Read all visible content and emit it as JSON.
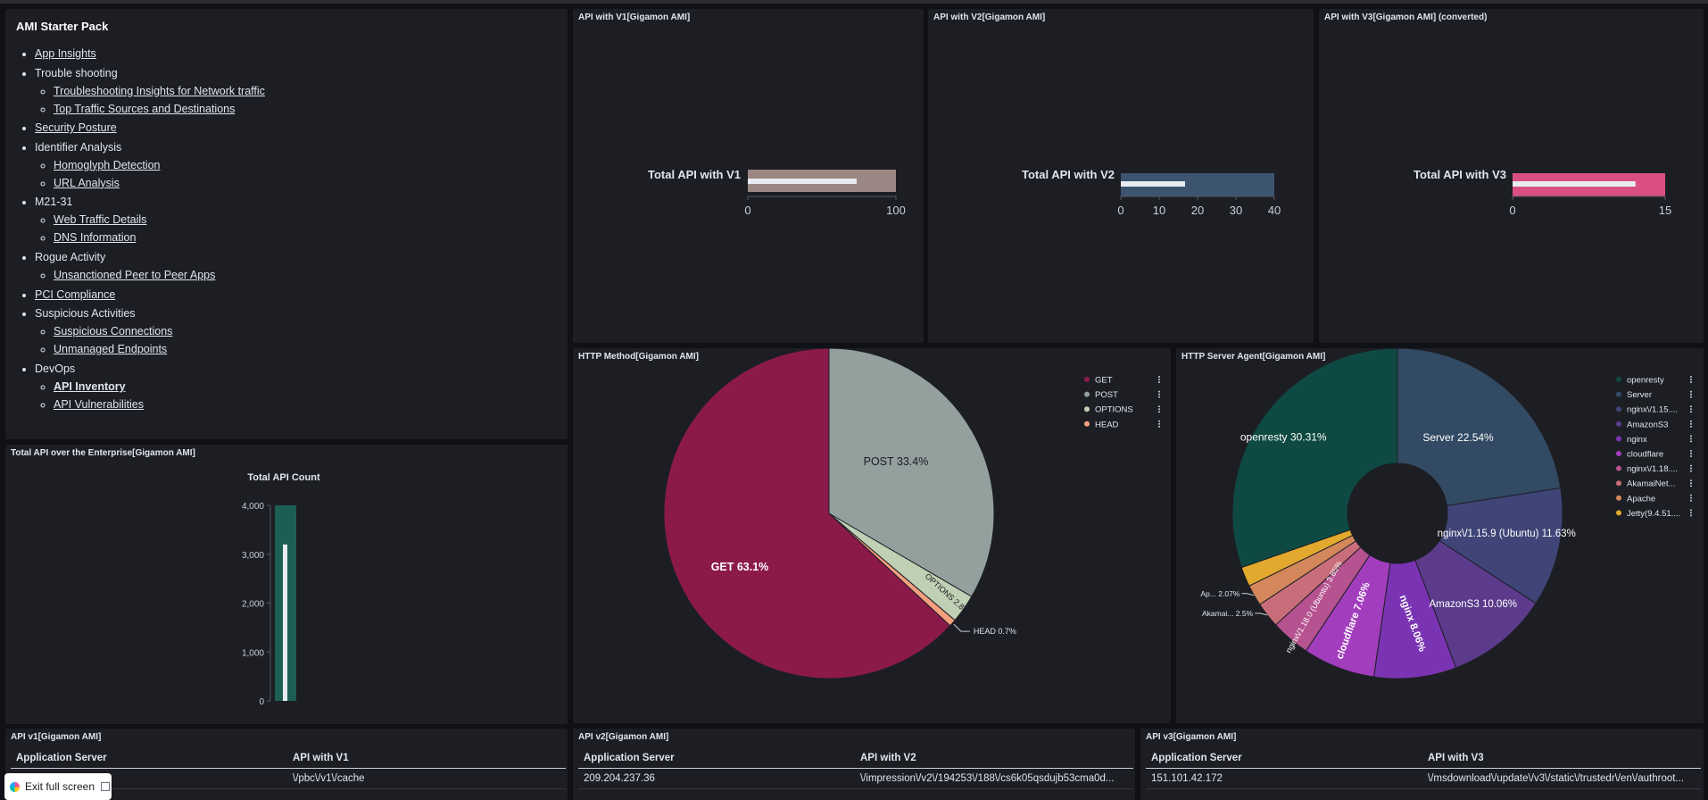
{
  "nav": {
    "title": "AMI Starter Pack",
    "items": [
      {
        "label": "App Insights",
        "link": true
      },
      {
        "label": "Trouble shooting",
        "link": false,
        "children": [
          {
            "label": "Troubleshooting Insights for Network traffic"
          },
          {
            "label": "Top Traffic Sources and Destinations"
          }
        ]
      },
      {
        "label": "Security Posture",
        "link": true
      },
      {
        "label": "Identifier Analysis",
        "link": false,
        "children": [
          {
            "label": "Homoglyph Detection"
          },
          {
            "label": "URL Analysis"
          }
        ]
      },
      {
        "label": "M21-31",
        "link": false,
        "children": [
          {
            "label": "Web Traffic Details"
          },
          {
            "label": "DNS Information"
          }
        ]
      },
      {
        "label": "Rogue Activity",
        "link": false,
        "children": [
          {
            "label": "Unsanctioned Peer to Peer Apps"
          }
        ]
      },
      {
        "label": "PCI Compliance",
        "link": true
      },
      {
        "label": "Suspicious Activities",
        "link": false,
        "children": [
          {
            "label": "Suspicious Connections"
          },
          {
            "label": "Unmanaged Endpoints"
          }
        ]
      },
      {
        "label": "DevOps",
        "link": false,
        "children": [
          {
            "label": "API Inventory",
            "active": true
          },
          {
            "label": "API Vulnerabilities"
          }
        ]
      }
    ]
  },
  "gauges": [
    {
      "title": "API with V1[Gigamon AMI]",
      "label": "Total API with V1",
      "value": 79,
      "max": 100,
      "ticks": [
        0,
        100
      ],
      "color": "#9a8682"
    },
    {
      "title": "API with V2[Gigamon AMI]",
      "label": "Total API with V2",
      "value": 18,
      "max": 40,
      "ticks": [
        0,
        10,
        20,
        30,
        40
      ],
      "color": "#3d5471"
    },
    {
      "title": "API with V3[Gigamon AMI] (converted)",
      "label": "Total API with V3",
      "value": 13,
      "max": 15,
      "ticks": [
        0,
        15
      ],
      "color": "#d94f82"
    }
  ],
  "total": {
    "title": "Total API over the Enterprise[Gigamon AMI]",
    "chart_title": "Total API Count",
    "value": 3200,
    "max": 4000,
    "ticks": [
      "0",
      "1,000",
      "2,000",
      "3,000",
      "4,000"
    ],
    "bar_color": "#1d5e54"
  },
  "http_method": {
    "title": "HTTP Method[Gigamon AMI]",
    "legend": [
      {
        "label": "GET",
        "color": "#8b1a4b"
      },
      {
        "label": "POST",
        "color": "#93a09d"
      },
      {
        "label": "OPTIONS",
        "color": "#c0d0b4"
      },
      {
        "label": "HEAD",
        "color": "#f4a07f"
      }
    ]
  },
  "server_agent": {
    "title": "HTTP Server Agent[Gigamon AMI]",
    "legend": [
      {
        "label": "openresty",
        "color": "#0e4a43"
      },
      {
        "label": "Server",
        "color": "#324a63"
      },
      {
        "label": "nginx\\/1.15....",
        "color": "#3f4577"
      },
      {
        "label": "AmazonS3",
        "color": "#5c3b8c"
      },
      {
        "label": "nginx",
        "color": "#7a34b3"
      },
      {
        "label": "cloudflare",
        "color": "#a23dbd"
      },
      {
        "label": "nginx\\/1.18....",
        "color": "#b5528f"
      },
      {
        "label": "AkamaiNet...",
        "color": "#c86e7a"
      },
      {
        "label": "Apache",
        "color": "#d3875a"
      },
      {
        "label": "Jetty(9.4.51....",
        "color": "#e2a92e"
      }
    ]
  },
  "chart_data": [
    {
      "type": "bar",
      "title": "Total API Count",
      "categories": [
        ""
      ],
      "values": [
        3200
      ],
      "ylim": [
        0,
        4000
      ],
      "yticks": [
        "0",
        "1,000",
        "2,000",
        "3,000",
        "4,000"
      ]
    },
    {
      "type": "pie",
      "title": "",
      "labels": [
        "GET",
        "POST",
        "OPTIONS",
        "HEAD"
      ],
      "values": [
        63.1,
        33.4,
        2.8,
        0.7
      ],
      "slice_labels": [
        "GET 63.1%",
        "POST 33.4%",
        "OPTIONS 2.8%",
        "HEAD 0.7%"
      ],
      "colors": [
        "#8b1a4b",
        "#93a09d",
        "#c0d0b4",
        "#f4a07f"
      ],
      "legend": "top-right"
    },
    {
      "type": "pie",
      "title": "",
      "donut": true,
      "labels": [
        "openresty",
        "Server",
        "nginx\\/1.15.9 (Ubuntu)",
        "AmazonS3",
        "nginx",
        "cloudflare",
        "nginx\\/1.18.0 (Ubuntu)",
        "AkamaiNet...",
        "Apache",
        "Jetty(9.4.51...."
      ],
      "values": [
        30.31,
        22.54,
        11.63,
        10.06,
        8.06,
        7.06,
        3.85,
        2.5,
        2.07,
        1.92
      ],
      "slice_labels": [
        "openresty 30.31%",
        "Server 22.54%",
        "nginx\\/1.15.9 (Ubuntu) 11.63%",
        "AmazonS3 10.06%",
        "nginx 8.06%",
        "cloudflare 7.06%",
        "nginx\\/1.18.0 (Ubuntu) 3.85%",
        "Akamai... 2.5%",
        "Ap... 2.07%",
        ""
      ],
      "colors": [
        "#0e4a43",
        "#324a63",
        "#3f4577",
        "#5c3b8c",
        "#7a34b3",
        "#a23dbd",
        "#b5528f",
        "#c86e7a",
        "#d3875a",
        "#e2a92e"
      ],
      "legend": "top-right"
    }
  ],
  "tables": [
    {
      "title": "API v1[Gigamon AMI]",
      "col1": "Application Server",
      "col2": "API with V1",
      "rows": [
        [
          "",
          "\\/pbc\\/v1\\/cache"
        ]
      ]
    },
    {
      "title": "API v2[Gigamon AMI]",
      "col1": "Application Server",
      "col2": "API with V2",
      "rows": [
        [
          "209.204.237.36",
          "\\/impression\\/v2\\/194253\\/188\\/cs6k05qsdujb53cma0d..."
        ]
      ]
    },
    {
      "title": "API v3[Gigamon AMI]",
      "col1": "Application Server",
      "col2": "API with V3",
      "rows": [
        [
          "151.101.42.172",
          "\\/msdownload\\/update\\/v3\\/static\\/trustedr\\/en\\/authroot..."
        ]
      ]
    }
  ],
  "exit_label": "Exit full screen"
}
